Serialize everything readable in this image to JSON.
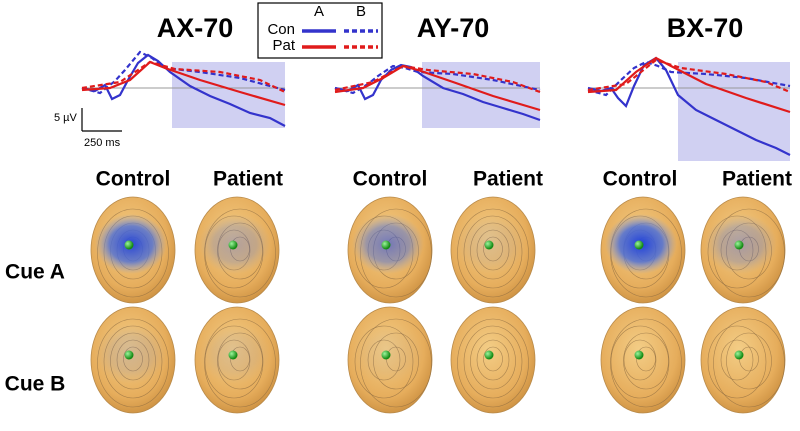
{
  "legend": {
    "rows": [
      "Con",
      "Pat"
    ],
    "columns": [
      "A",
      "B"
    ]
  },
  "panels": [
    {
      "title": "AX-70",
      "columns": [
        "Control",
        "Patient"
      ]
    },
    {
      "title": "AY-70",
      "columns": [
        "Control",
        "Patient"
      ]
    },
    {
      "title": "BX-70",
      "columns": [
        "Control",
        "Patient"
      ]
    }
  ],
  "rows": [
    "Cue A",
    "Cue B"
  ],
  "scale_bar": {
    "amplitude": "5 µV",
    "time": "250 ms"
  }
}
